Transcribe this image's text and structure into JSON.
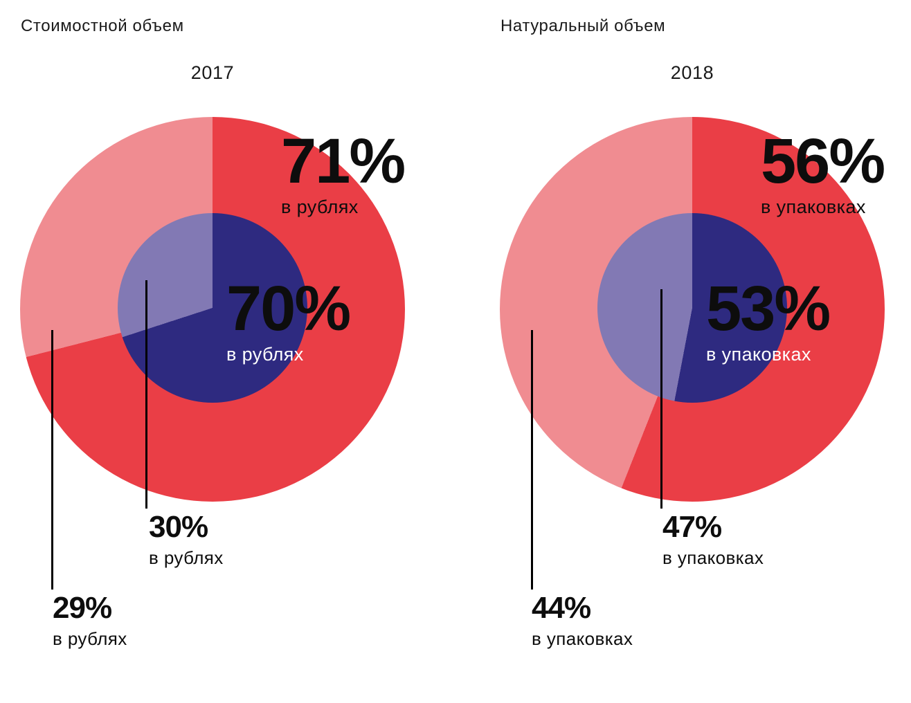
{
  "colors": {
    "red": "#ea3e46",
    "pink": "#f08c91",
    "navy": "#2e2a80",
    "light_purple": "#8279b4",
    "text": "#111111",
    "background": "#ffffff",
    "callout_line": "#000000"
  },
  "chart_data": [
    {
      "type": "pie",
      "title": "Стоимостной объем",
      "year_label": "2017",
      "legend": "none",
      "layout": "nested concentric pies, segments start at 12 o'clock clockwise",
      "rings": {
        "outer": {
          "segments": [
            {
              "name": "main",
              "display": "71%",
              "unit": "в рублях",
              "value": 71,
              "color": "#ea3e46"
            },
            {
              "name": "secondary",
              "display": "29%",
              "unit": "в рублях",
              "value": 29,
              "color": "#f08c91"
            }
          ]
        },
        "inner": {
          "segments": [
            {
              "name": "main",
              "display": "70%",
              "unit": "в рублях",
              "value": 70,
              "color": "#2e2a80"
            },
            {
              "name": "secondary",
              "display": "30%",
              "unit": "в рублях",
              "value": 30,
              "color": "#8279b4"
            }
          ]
        }
      }
    },
    {
      "type": "pie",
      "title": "Натуральный объем",
      "year_label": "2018",
      "legend": "none",
      "layout": "nested concentric pies, segments start at 12 o'clock clockwise",
      "rings": {
        "outer": {
          "segments": [
            {
              "name": "main",
              "display": "56%",
              "unit": "в упаковках",
              "value": 56,
              "color": "#ea3e46"
            },
            {
              "name": "secondary",
              "display": "44%",
              "unit": "в упаковках",
              "value": 44,
              "color": "#f08c91"
            }
          ]
        },
        "inner": {
          "segments": [
            {
              "name": "main",
              "display": "53%",
              "unit": "в упаковках",
              "value": 53,
              "color": "#2e2a80"
            },
            {
              "name": "secondary",
              "display": "47%",
              "unit": "в упаковках",
              "value": 47,
              "color": "#8279b4"
            }
          ]
        }
      }
    }
  ]
}
